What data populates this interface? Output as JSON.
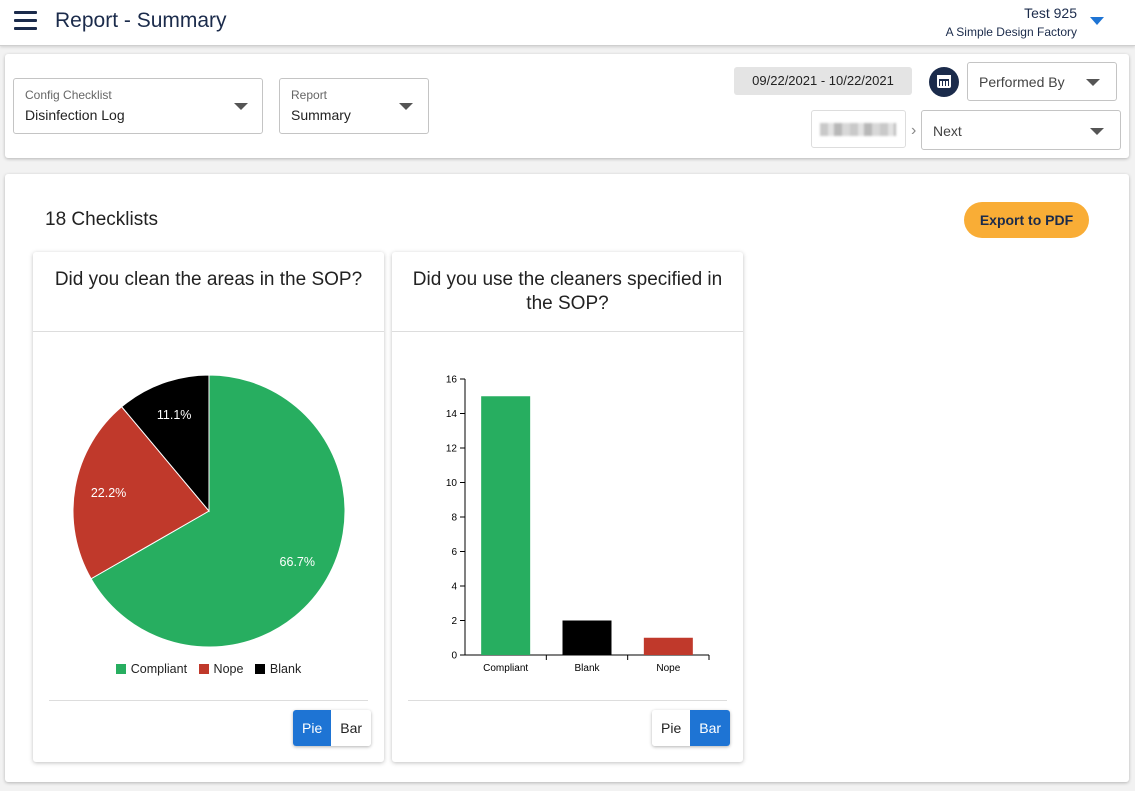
{
  "header": {
    "title": "Report - Summary",
    "user_name": "Test 925",
    "company": "A Simple Design Factory"
  },
  "filters": {
    "config_checklist": {
      "label": "Config Checklist",
      "value": "Disinfection Log"
    },
    "report": {
      "label": "Report",
      "value": "Summary"
    },
    "date_range": "09/22/2021 - 10/22/2021",
    "performed_by": {
      "value": "Performed By"
    },
    "next": {
      "value": "Next"
    }
  },
  "content": {
    "checklist_count": "18 Checklists",
    "export_label": "Export to PDF"
  },
  "colors": {
    "compliant": "#27ae60",
    "nope": "#c0392b",
    "blank": "#000000",
    "accent": "#1e74d4",
    "export": "#f9ad36"
  },
  "cards": [
    {
      "title": "Did you clean the areas in the SOP?",
      "toggle": {
        "pie": "Pie",
        "bar": "Bar",
        "active": "pie"
      },
      "legend": [
        "Compliant",
        "Nope",
        "Blank"
      ]
    },
    {
      "title": "Did you use the cleaners specified in the SOP?",
      "toggle": {
        "pie": "Pie",
        "bar": "Bar",
        "active": "bar"
      }
    }
  ],
  "chart_data": [
    {
      "type": "pie",
      "categories": [
        "Compliant",
        "Nope",
        "Blank"
      ],
      "values": [
        66.7,
        22.2,
        11.1
      ],
      "labels": [
        "66.7%",
        "22.2%",
        "11.1%"
      ],
      "title": "Did you clean the areas in the SOP?"
    },
    {
      "type": "bar",
      "categories": [
        "Compliant",
        "Blank",
        "Nope"
      ],
      "values": [
        15,
        2,
        1
      ],
      "title": "Did you use the cleaners specified in the SOP?",
      "ylim": [
        0,
        16
      ],
      "yticks": [
        0,
        2,
        4,
        6,
        8,
        10,
        12,
        14,
        16
      ]
    }
  ]
}
